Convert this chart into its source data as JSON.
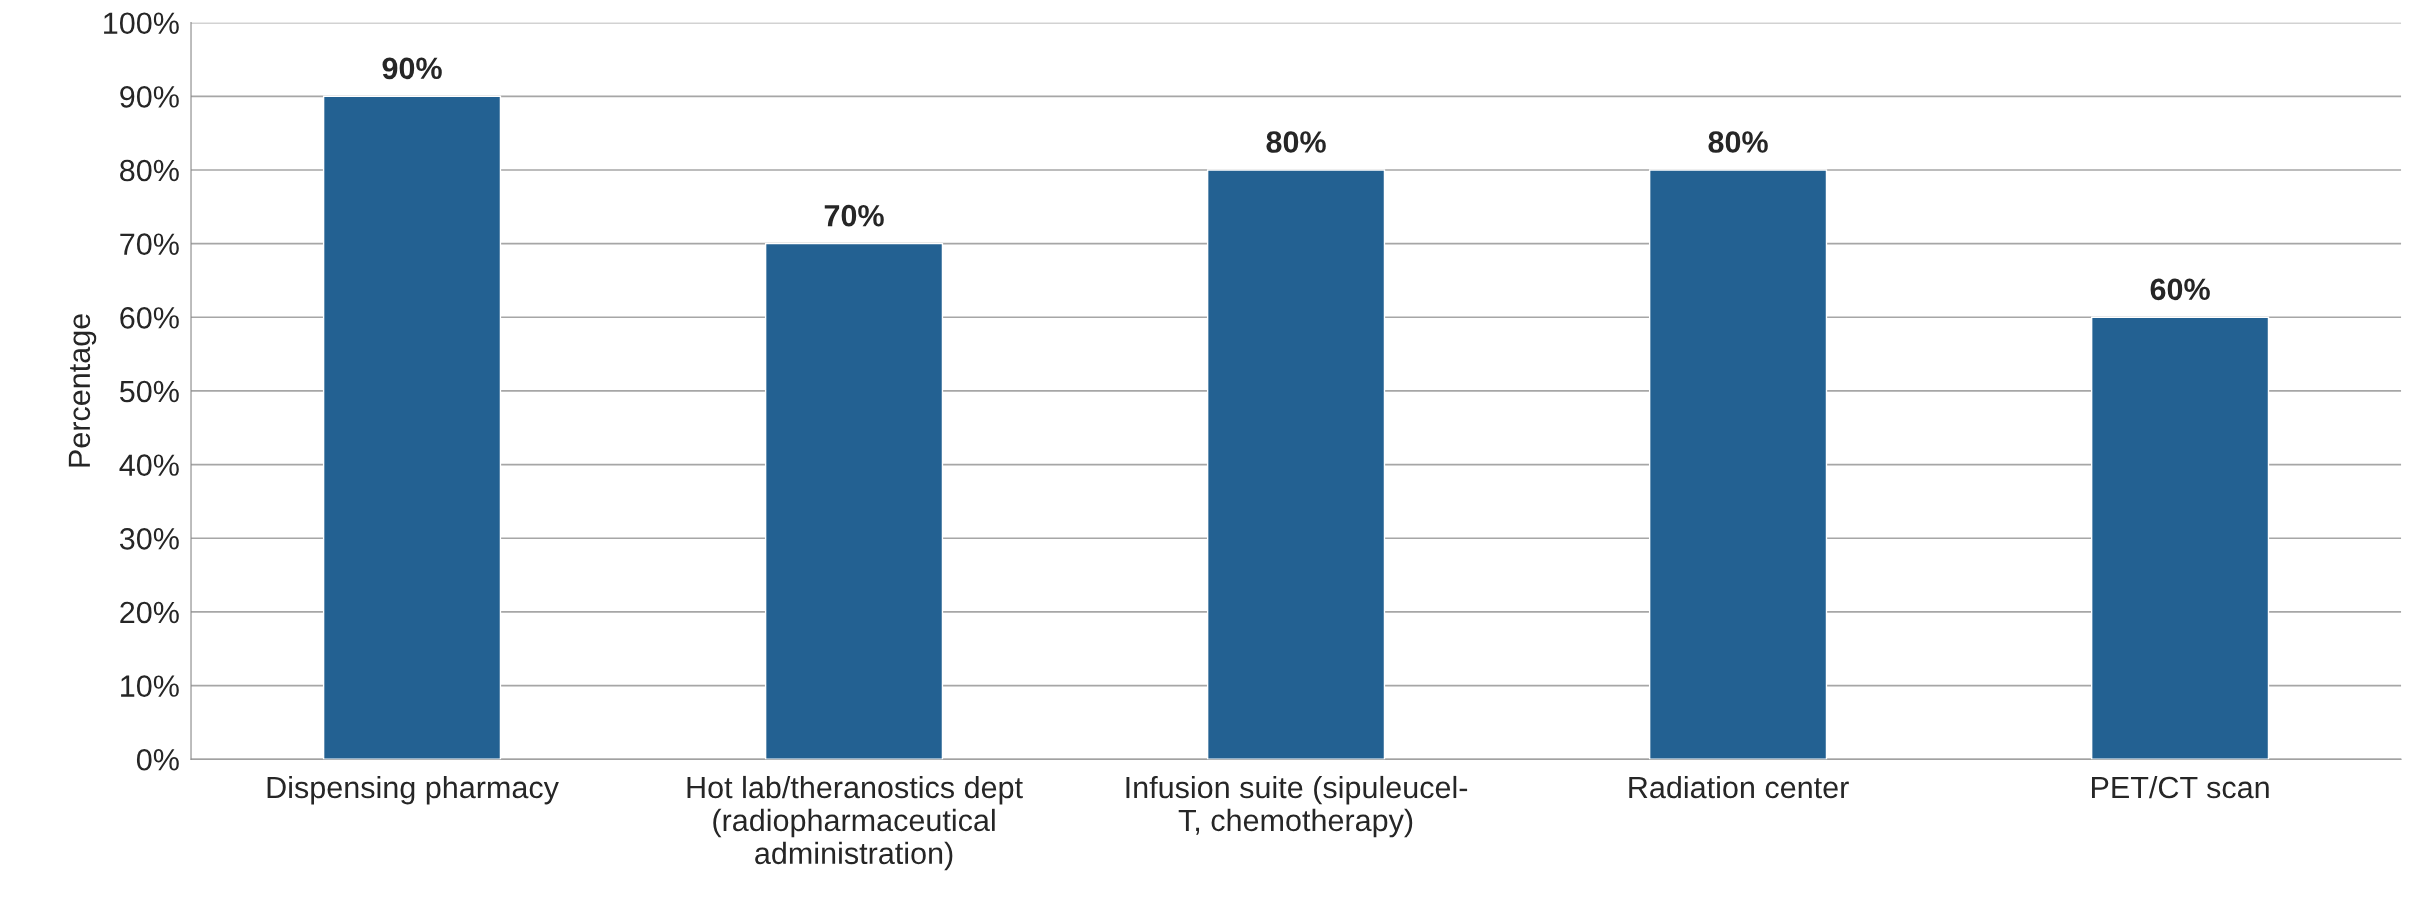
{
  "chart_data": {
    "type": "bar",
    "ylabel": "Percentage",
    "categories": [
      "Dispensing pharmacy",
      "Hot lab/theranostics dept\n(radiopharmaceutical\nadministration)",
      "Infusion suite (sipuleucel-\nT, chemotherapy)",
      "Radiation center",
      "PET/CT scan"
    ],
    "values": [
      90,
      70,
      80,
      80,
      60
    ],
    "value_labels": [
      "90%",
      "70%",
      "80%",
      "80%",
      "60%"
    ],
    "color": "#236192",
    "ylim": [
      0,
      100
    ],
    "yticks": [
      {
        "value": 0,
        "label": "0%"
      },
      {
        "value": 10,
        "label": "10%"
      },
      {
        "value": 20,
        "label": "20%"
      },
      {
        "value": 30,
        "label": "30%"
      },
      {
        "value": 40,
        "label": "40%"
      },
      {
        "value": 50,
        "label": "50%"
      },
      {
        "value": 60,
        "label": "60%"
      },
      {
        "value": 70,
        "label": "70%"
      },
      {
        "value": 80,
        "label": "80%"
      },
      {
        "value": 90,
        "label": "90%"
      },
      {
        "value": 100,
        "label": "100%"
      }
    ],
    "grid": "y"
  }
}
